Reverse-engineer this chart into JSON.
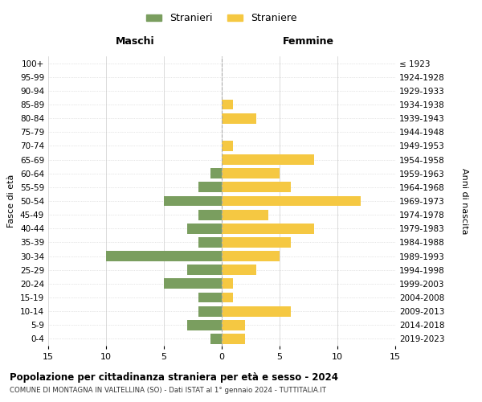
{
  "age_groups": [
    "0-4",
    "5-9",
    "10-14",
    "15-19",
    "20-24",
    "25-29",
    "30-34",
    "35-39",
    "40-44",
    "45-49",
    "50-54",
    "55-59",
    "60-64",
    "65-69",
    "70-74",
    "75-79",
    "80-84",
    "85-89",
    "90-94",
    "95-99",
    "100+"
  ],
  "birth_years": [
    "2019-2023",
    "2014-2018",
    "2009-2013",
    "2004-2008",
    "1999-2003",
    "1994-1998",
    "1989-1993",
    "1984-1988",
    "1979-1983",
    "1974-1978",
    "1969-1973",
    "1964-1968",
    "1959-1963",
    "1954-1958",
    "1949-1953",
    "1944-1948",
    "1939-1943",
    "1934-1938",
    "1929-1933",
    "1924-1928",
    "≤ 1923"
  ],
  "maschi": [
    1,
    3,
    2,
    2,
    5,
    3,
    10,
    2,
    3,
    2,
    5,
    2,
    1,
    0,
    0,
    0,
    0,
    0,
    0,
    0,
    0
  ],
  "femmine": [
    2,
    2,
    6,
    1,
    1,
    3,
    5,
    6,
    8,
    4,
    12,
    6,
    5,
    8,
    1,
    0,
    3,
    1,
    0,
    0,
    0
  ],
  "maschi_color": "#7a9e5f",
  "femmine_color": "#f5c842",
  "bg_color": "#ffffff",
  "grid_color": "#cccccc",
  "title": "Popolazione per cittadinanza straniera per età e sesso - 2024",
  "subtitle": "COMUNE DI MONTAGNA IN VALTELLINA (SO) - Dati ISTAT al 1° gennaio 2024 - TUTTITALIA.IT",
  "xlabel_left": "Maschi",
  "xlabel_right": "Femmine",
  "ylabel_left": "Fasce di età",
  "ylabel_right": "Anni di nascita",
  "legend_stranieri": "Stranieri",
  "legend_straniere": "Straniere",
  "xlim": 15
}
